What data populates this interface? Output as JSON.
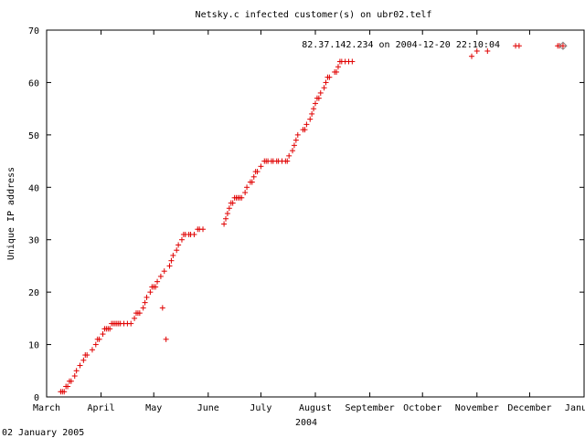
{
  "chart_data": {
    "type": "scatter",
    "title": "Netsky.c infected customer(s) on ubr02.telf",
    "xlabel": "2004",
    "ylabel": "Unique IP address",
    "ylim": [
      0,
      70
    ],
    "yticks": [
      "0",
      "10",
      "20",
      "30",
      "40",
      "50",
      "60",
      "70"
    ],
    "xlim": [
      "2004-03-01",
      "2005-01-01"
    ],
    "xticks": [
      {
        "date": "2004-03-01",
        "label": "March"
      },
      {
        "date": "2004-04-01",
        "label": "April"
      },
      {
        "date": "2004-05-01",
        "label": "May"
      },
      {
        "date": "2004-06-01",
        "label": "June"
      },
      {
        "date": "2004-07-01",
        "label": "July"
      },
      {
        "date": "2004-08-01",
        "label": "August"
      },
      {
        "date": "2004-09-01",
        "label": "September"
      },
      {
        "date": "2004-10-01",
        "label": "October"
      },
      {
        "date": "2004-11-01",
        "label": "November"
      },
      {
        "date": "2004-12-01",
        "label": "December"
      },
      {
        "date": "2005-01-01",
        "label": "January"
      }
    ],
    "annotation": "82.37.142.234 on 2004-12-20 22:10:04",
    "highlight": {
      "x": "2004-12-20",
      "y": 67
    },
    "marker_color": "#e00000",
    "series": [
      {
        "values": [
          [
            "2004-03-09",
            1
          ],
          [
            "2004-03-10",
            1
          ],
          [
            "2004-03-11",
            1
          ],
          [
            "2004-03-12",
            2
          ],
          [
            "2004-03-13",
            2
          ],
          [
            "2004-03-14",
            3
          ],
          [
            "2004-03-15",
            3
          ],
          [
            "2004-03-17",
            4
          ],
          [
            "2004-03-18",
            5
          ],
          [
            "2004-03-20",
            6
          ],
          [
            "2004-03-22",
            7
          ],
          [
            "2004-03-23",
            8
          ],
          [
            "2004-03-24",
            8
          ],
          [
            "2004-03-27",
            9
          ],
          [
            "2004-03-29",
            10
          ],
          [
            "2004-03-30",
            11
          ],
          [
            "2004-03-31",
            11
          ],
          [
            "2004-04-02",
            12
          ],
          [
            "2004-04-03",
            13
          ],
          [
            "2004-04-04",
            13
          ],
          [
            "2004-04-05",
            13
          ],
          [
            "2004-04-06",
            13
          ],
          [
            "2004-04-07",
            14
          ],
          [
            "2004-04-08",
            14
          ],
          [
            "2004-04-09",
            14
          ],
          [
            "2004-04-10",
            14
          ],
          [
            "2004-04-11",
            14
          ],
          [
            "2004-04-12",
            14
          ],
          [
            "2004-04-14",
            14
          ],
          [
            "2004-04-16",
            14
          ],
          [
            "2004-04-18",
            14
          ],
          [
            "2004-04-20",
            15
          ],
          [
            "2004-04-21",
            16
          ],
          [
            "2004-04-22",
            16
          ],
          [
            "2004-04-23",
            16
          ],
          [
            "2004-04-25",
            17
          ],
          [
            "2004-04-26",
            18
          ],
          [
            "2004-04-27",
            19
          ],
          [
            "2004-04-29",
            20
          ],
          [
            "2004-04-30",
            21
          ],
          [
            "2004-05-01",
            21
          ],
          [
            "2004-05-02",
            21
          ],
          [
            "2004-05-03",
            22
          ],
          [
            "2004-05-05",
            23
          ],
          [
            "2004-05-06",
            17
          ],
          [
            "2004-05-07",
            24
          ],
          [
            "2004-05-08",
            11
          ],
          [
            "2004-05-10",
            25
          ],
          [
            "2004-05-11",
            26
          ],
          [
            "2004-05-12",
            27
          ],
          [
            "2004-05-14",
            28
          ],
          [
            "2004-05-15",
            29
          ],
          [
            "2004-05-17",
            30
          ],
          [
            "2004-05-18",
            31
          ],
          [
            "2004-05-19",
            31
          ],
          [
            "2004-05-21",
            31
          ],
          [
            "2004-05-22",
            31
          ],
          [
            "2004-05-24",
            31
          ],
          [
            "2004-05-26",
            32
          ],
          [
            "2004-05-27",
            32
          ],
          [
            "2004-05-29",
            32
          ],
          [
            "2004-06-10",
            33
          ],
          [
            "2004-06-11",
            34
          ],
          [
            "2004-06-12",
            35
          ],
          [
            "2004-06-13",
            36
          ],
          [
            "2004-06-14",
            37
          ],
          [
            "2004-06-15",
            37
          ],
          [
            "2004-06-16",
            38
          ],
          [
            "2004-06-17",
            38
          ],
          [
            "2004-06-18",
            38
          ],
          [
            "2004-06-19",
            38
          ],
          [
            "2004-06-20",
            38
          ],
          [
            "2004-06-22",
            39
          ],
          [
            "2004-06-23",
            40
          ],
          [
            "2004-06-25",
            41
          ],
          [
            "2004-06-26",
            41
          ],
          [
            "2004-06-27",
            42
          ],
          [
            "2004-06-28",
            43
          ],
          [
            "2004-06-29",
            43
          ],
          [
            "2004-07-01",
            44
          ],
          [
            "2004-07-03",
            45
          ],
          [
            "2004-07-04",
            45
          ],
          [
            "2004-07-05",
            45
          ],
          [
            "2004-07-07",
            45
          ],
          [
            "2004-07-08",
            45
          ],
          [
            "2004-07-10",
            45
          ],
          [
            "2004-07-11",
            45
          ],
          [
            "2004-07-13",
            45
          ],
          [
            "2004-07-15",
            45
          ],
          [
            "2004-07-16",
            45
          ],
          [
            "2004-07-17",
            46
          ],
          [
            "2004-07-19",
            47
          ],
          [
            "2004-07-20",
            48
          ],
          [
            "2004-07-21",
            49
          ],
          [
            "2004-07-22",
            50
          ],
          [
            "2004-07-25",
            51
          ],
          [
            "2004-07-26",
            51
          ],
          [
            "2004-07-27",
            52
          ],
          [
            "2004-07-29",
            53
          ],
          [
            "2004-07-30",
            54
          ],
          [
            "2004-07-31",
            55
          ],
          [
            "2004-08-01",
            56
          ],
          [
            "2004-08-02",
            57
          ],
          [
            "2004-08-03",
            57
          ],
          [
            "2004-08-04",
            58
          ],
          [
            "2004-08-06",
            59
          ],
          [
            "2004-08-07",
            60
          ],
          [
            "2004-08-08",
            61
          ],
          [
            "2004-08-09",
            61
          ],
          [
            "2004-08-12",
            62
          ],
          [
            "2004-08-13",
            62
          ],
          [
            "2004-08-14",
            63
          ],
          [
            "2004-08-15",
            64
          ],
          [
            "2004-08-16",
            64
          ],
          [
            "2004-08-18",
            64
          ],
          [
            "2004-08-20",
            64
          ],
          [
            "2004-08-22",
            64
          ],
          [
            "2004-10-29",
            65
          ],
          [
            "2004-11-01",
            66
          ],
          [
            "2004-11-07",
            66
          ],
          [
            "2004-11-23",
            67
          ],
          [
            "2004-11-25",
            67
          ],
          [
            "2004-12-17",
            67
          ],
          [
            "2004-12-18",
            67
          ],
          [
            "2004-12-20",
            67
          ]
        ]
      }
    ]
  },
  "footer": {
    "date": "02 January 2005"
  }
}
